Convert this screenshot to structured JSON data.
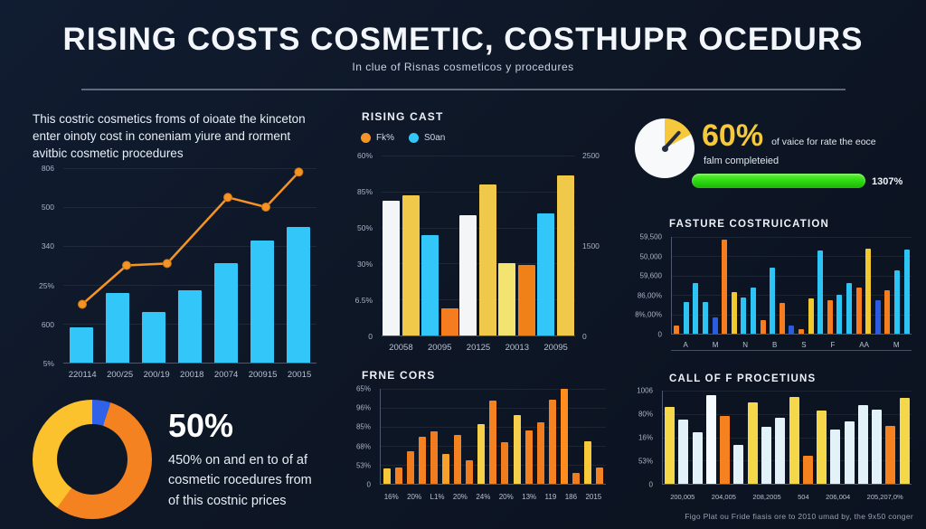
{
  "header": {
    "title": "RISING COSTS COSMETIC, COSTHUPR OCEDURS",
    "subtitle": "In clue of Risnas cosmeticos y procedures"
  },
  "left": {
    "paragraph": "This costric cosmetics froms of oioate the kinceton enter oinoty cost in coneniam yiure and rorment avitbic cosmetic procedures",
    "stat": {
      "value": "50%",
      "line1": "450% on and en to of af",
      "line2": "cosmetic rocedures from",
      "line3": "of this costnic prices"
    },
    "donut": {
      "slices": [
        {
          "label": "blue",
          "pct": 5,
          "color": "#2f62e8"
        },
        {
          "label": "orange",
          "pct": 55,
          "color": "#f58220"
        },
        {
          "label": "yellow",
          "pct": 40,
          "color": "#fbc22d"
        }
      ]
    }
  },
  "right": {
    "completion": {
      "value": "60%",
      "text_inline": "of vaice for rate the eoce",
      "text_below": "falm completeied",
      "progress_label": "1307%",
      "progress_pct": 100,
      "bar_color": "#2bd80f"
    },
    "caption": "Figo Plat ou Fride fiasis ore to 2010 umad by, the 9x50 conger"
  },
  "chart_data": [
    {
      "id": "cost-trend",
      "type": "bar+line",
      "ylabels": [
        "806",
        "500",
        "340",
        "25%",
        "600",
        "5%"
      ],
      "xlabels": [
        "220114",
        "200/25",
        "200/19",
        "20018",
        "20074",
        "200915",
        "20015"
      ],
      "ylim": [
        0,
        100
      ],
      "grid": true,
      "bar_color": "#33c6f8",
      "bars": [
        {
          "v": 18,
          "c": "#33c6f8"
        },
        {
          "v": 36,
          "c": "#33c6f8"
        },
        {
          "v": 26,
          "c": "#33c6f8"
        },
        {
          "v": 37,
          "c": "#33c6f8"
        },
        {
          "v": 51,
          "c": "#33c6f8"
        },
        {
          "v": 63,
          "c": "#33c6f8"
        },
        {
          "v": 70,
          "c": "#33c6f8"
        }
      ],
      "line": {
        "color": "#f59425",
        "x_pct": [
          7.5,
          25,
          41,
          65,
          80,
          93
        ],
        "y_pct": [
          30,
          50,
          51,
          85,
          80,
          98
        ]
      }
    },
    {
      "id": "rising-cast",
      "type": "grouped-bar",
      "title": "RISING CAST",
      "legend": [
        {
          "label": "Fk%",
          "color": "#f59425"
        },
        {
          "label": "S0an",
          "color": "#33c6f8"
        }
      ],
      "ylabels": [
        "60%",
        "85%",
        "50%",
        "30%",
        "6.5%",
        "0"
      ],
      "ylabels_right": [
        "2500",
        "1500",
        "0"
      ],
      "xlabels": [
        "20058",
        "20095",
        "20125",
        "20013",
        "20095"
      ],
      "grid": true,
      "groups": [
        [
          {
            "v": 75,
            "c": "#f3f5f7"
          },
          {
            "v": 78,
            "c": "#f0c84a"
          }
        ],
        [
          {
            "v": 56,
            "c": "#33c6f8"
          },
          {
            "v": 15,
            "c": "#f57c1f"
          }
        ],
        [
          {
            "v": 67,
            "c": "#f3f5f7"
          },
          {
            "v": 84,
            "c": "#f0c84a"
          }
        ],
        [
          {
            "v": 40,
            "c": "#f3e370"
          },
          {
            "v": 39,
            "c": "#f08018"
          }
        ],
        [
          {
            "v": 68,
            "c": "#33c6f8"
          },
          {
            "v": 89,
            "c": "#f0c84a"
          }
        ]
      ]
    },
    {
      "id": "frne-cors",
      "type": "bar",
      "title": "FRNE CORS",
      "ylabels": [
        "65%",
        "96%",
        "85%",
        "68%",
        "53%",
        "0"
      ],
      "xlabels": [
        "16%",
        "20%",
        "L1%",
        "20%",
        "24%",
        "20%",
        "13%",
        "119",
        "186",
        "2015"
      ],
      "grid": true,
      "bars": [
        {
          "v": 16,
          "c": "#f6c83a"
        },
        {
          "v": 17,
          "c": "#f58220"
        },
        {
          "v": 34,
          "c": "#ef7c1e"
        },
        {
          "v": 50,
          "c": "#f58220"
        },
        {
          "v": 55,
          "c": "#ef7c1e"
        },
        {
          "v": 31,
          "c": "#f5a02a"
        },
        {
          "v": 51,
          "c": "#f58220"
        },
        {
          "v": 25,
          "c": "#ef7c1e"
        },
        {
          "v": 63,
          "c": "#f6d04a"
        },
        {
          "v": 88,
          "c": "#f58220"
        },
        {
          "v": 44,
          "c": "#ef7c1e"
        },
        {
          "v": 72,
          "c": "#f6d04a"
        },
        {
          "v": 56,
          "c": "#f58220"
        },
        {
          "v": 65,
          "c": "#ef7c1e"
        },
        {
          "v": 89,
          "c": "#f58220"
        },
        {
          "v": 100,
          "c": "#ff8d1d"
        },
        {
          "v": 11,
          "c": "#ef7c1e"
        },
        {
          "v": 45,
          "c": "#f6c83a"
        },
        {
          "v": 17,
          "c": "#f58220"
        }
      ]
    },
    {
      "id": "fasture-costruication",
      "type": "bar",
      "title": "FASTURE COSTRUICATION",
      "ylabels": [
        "59,500",
        "50,000",
        "59,600",
        "86,00%",
        "8%,00%",
        "0"
      ],
      "xlabels": [
        "A",
        "M",
        "N",
        "B",
        "S",
        "F",
        "AA",
        "M"
      ],
      "grid": true,
      "bars": [
        {
          "v": 8,
          "c": "#f57c1f"
        },
        {
          "v": 33,
          "c": "#2cc4f4"
        },
        {
          "v": 52,
          "c": "#2cc4f4"
        },
        {
          "v": 33,
          "c": "#2cc4f4"
        },
        {
          "v": 17,
          "c": "#2b5ce0"
        },
        {
          "v": 97,
          "c": "#f57c1f"
        },
        {
          "v": 43,
          "c": "#f0c830"
        },
        {
          "v": 37,
          "c": "#2cc4f4"
        },
        {
          "v": 48,
          "c": "#2cc4f4"
        },
        {
          "v": 14,
          "c": "#f57c1f"
        },
        {
          "v": 68,
          "c": "#2cc4f4"
        },
        {
          "v": 32,
          "c": "#f57c1f"
        },
        {
          "v": 8,
          "c": "#2b5ce0"
        },
        {
          "v": 5,
          "c": "#f57c1f"
        },
        {
          "v": 36,
          "c": "#f0c830"
        },
        {
          "v": 86,
          "c": "#2cc4f4"
        },
        {
          "v": 35,
          "c": "#f57c1f"
        },
        {
          "v": 40,
          "c": "#2cc4f4"
        },
        {
          "v": 52,
          "c": "#2cc4f4"
        },
        {
          "v": 48,
          "c": "#f57c1f"
        },
        {
          "v": 88,
          "c": "#f0c830"
        },
        {
          "v": 35,
          "c": "#2b5ce0"
        },
        {
          "v": 45,
          "c": "#f57c1f"
        },
        {
          "v": 65,
          "c": "#2cc4f4"
        },
        {
          "v": 87,
          "c": "#2cc4f4"
        }
      ]
    },
    {
      "id": "call-of-procetiuns",
      "type": "bar",
      "title": "CALL OF F PROCETIUNS",
      "ylabels": [
        "1006",
        "80%",
        "16%",
        "53%",
        "0"
      ],
      "xlabels": [
        "200,005",
        "204,005",
        "208,2005",
        "504",
        "206,004",
        "205,207,0%"
      ],
      "grid": true,
      "bars": [
        {
          "v": 83,
          "c": "#f5d84a"
        },
        {
          "v": 69,
          "c": "#e3f1f8"
        },
        {
          "v": 55,
          "c": "#e3f1f8"
        },
        {
          "v": 95,
          "c": "#f6fbff"
        },
        {
          "v": 73,
          "c": "#f5821e"
        },
        {
          "v": 42,
          "c": "#e3f1f8"
        },
        {
          "v": 87,
          "c": "#f5d84a"
        },
        {
          "v": 61,
          "c": "#e3f1f8"
        },
        {
          "v": 71,
          "c": "#e3f1f8"
        },
        {
          "v": 93,
          "c": "#f5d84a"
        },
        {
          "v": 30,
          "c": "#f5821e"
        },
        {
          "v": 79,
          "c": "#f5d84a"
        },
        {
          "v": 58,
          "c": "#e3f1f8"
        },
        {
          "v": 67,
          "c": "#e3f1f8"
        },
        {
          "v": 84,
          "c": "#e3f1f8"
        },
        {
          "v": 80,
          "c": "#e3f1f8"
        },
        {
          "v": 62,
          "c": "#f5821e"
        },
        {
          "v": 92,
          "c": "#f5d84a"
        }
      ]
    }
  ]
}
